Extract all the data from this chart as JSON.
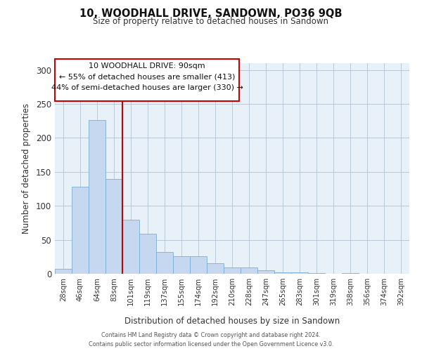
{
  "title": "10, WOODHALL DRIVE, SANDOWN, PO36 9QB",
  "subtitle": "Size of property relative to detached houses in Sandown",
  "xlabel": "Distribution of detached houses by size in Sandown",
  "ylabel": "Number of detached properties",
  "bar_color": "#c5d8f0",
  "bar_edge_color": "#7aadd4",
  "bg_color": "#e8f0f8",
  "grid_color": "#b8c8d8",
  "categories": [
    "28sqm",
    "46sqm",
    "64sqm",
    "83sqm",
    "101sqm",
    "119sqm",
    "137sqm",
    "155sqm",
    "174sqm",
    "192sqm",
    "210sqm",
    "228sqm",
    "247sqm",
    "265sqm",
    "283sqm",
    "301sqm",
    "319sqm",
    "338sqm",
    "356sqm",
    "374sqm",
    "392sqm"
  ],
  "values": [
    7,
    128,
    226,
    140,
    80,
    59,
    32,
    26,
    26,
    15,
    9,
    9,
    5,
    2,
    2,
    1,
    0,
    1,
    0,
    0,
    0
  ],
  "ylim": [
    0,
    310
  ],
  "yticks": [
    0,
    50,
    100,
    150,
    200,
    250,
    300
  ],
  "property_line_x": 3.5,
  "property_line_color": "#cc0000",
  "annotation_title": "10 WOODHALL DRIVE: 90sqm",
  "annotation_line1": "← 55% of detached houses are smaller (413)",
  "annotation_line2": "44% of semi-detached houses are larger (330) →",
  "annotation_box_color": "#ffffff",
  "annotation_box_edge_color": "#cc0000",
  "footer_line1": "Contains HM Land Registry data © Crown copyright and database right 2024.",
  "footer_line2": "Contains public sector information licensed under the Open Government Licence v3.0."
}
